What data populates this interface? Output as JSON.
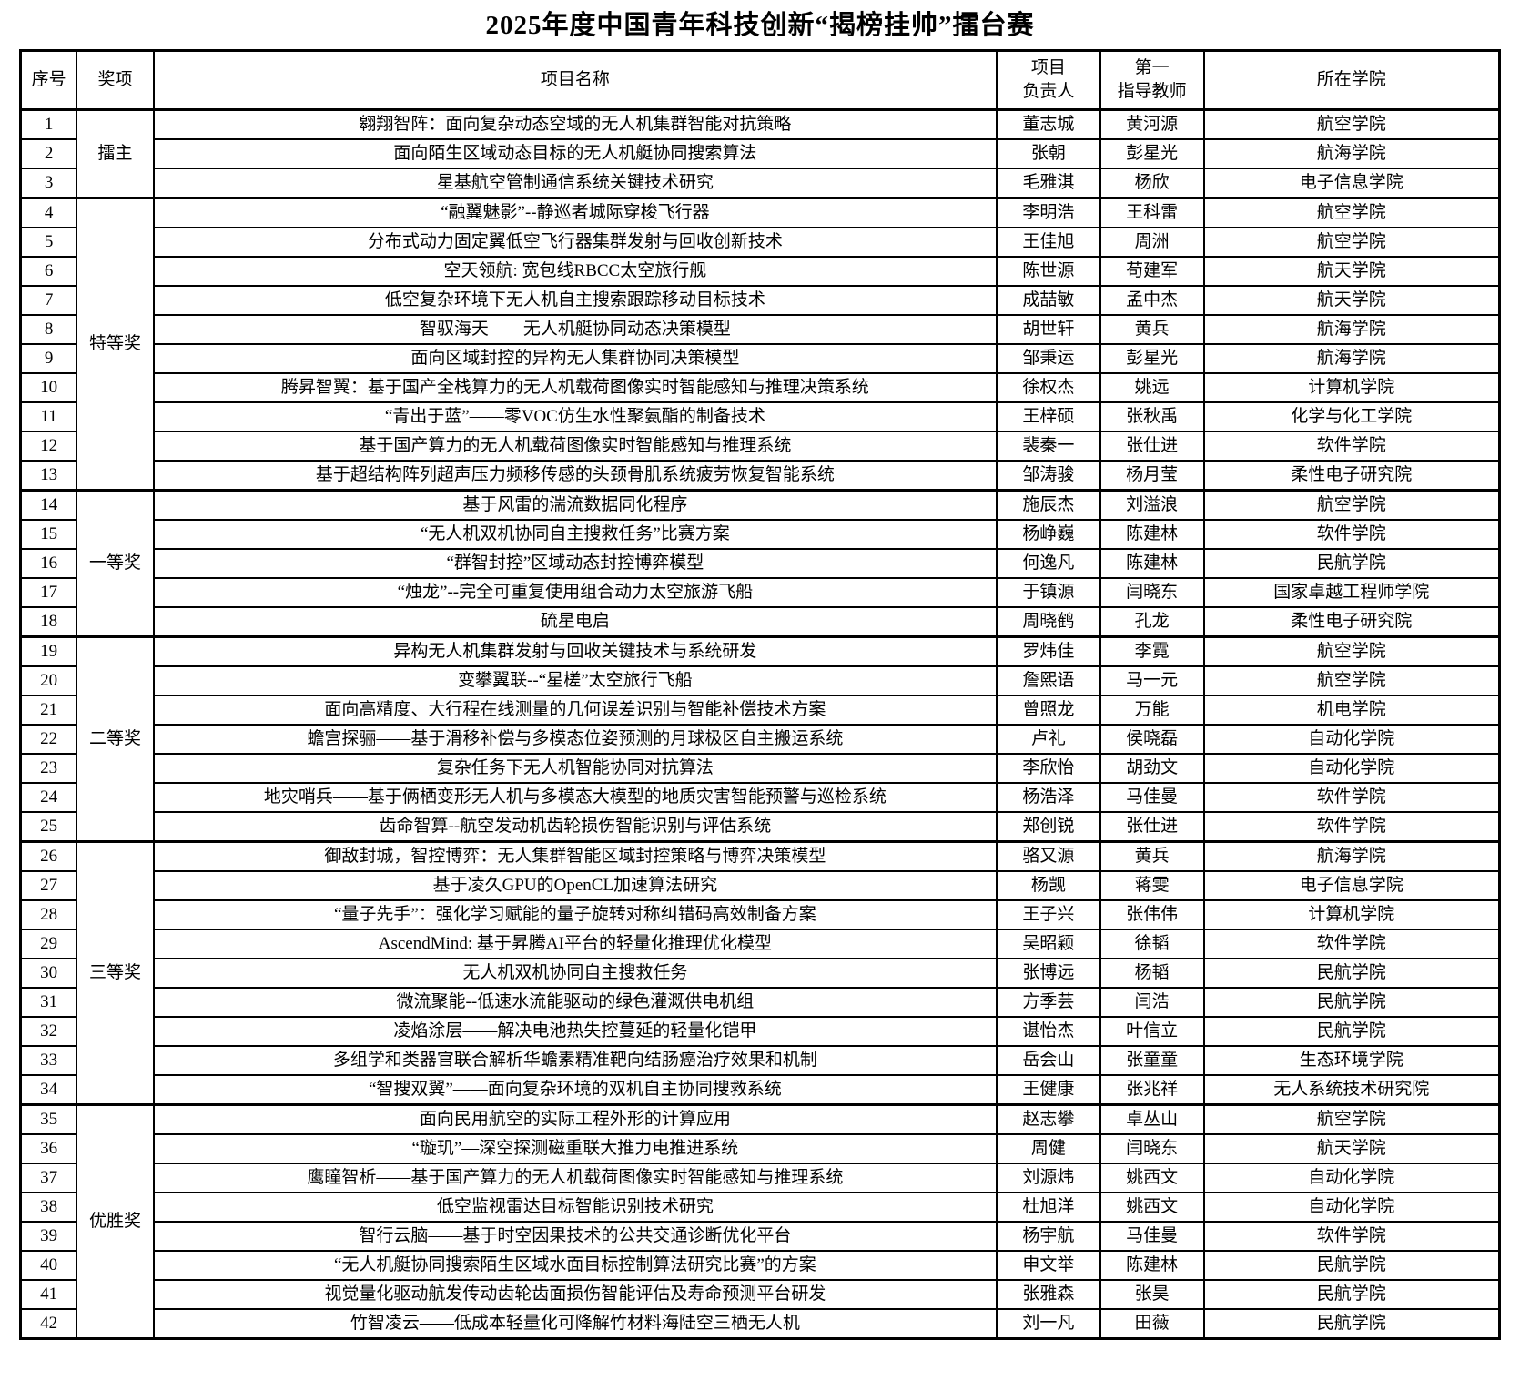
{
  "title": "2025年度中国青年科技创新“揭榜挂帅”擂台赛",
  "colors": {
    "text": "#000000",
    "border": "#000000",
    "background": "#ffffff"
  },
  "table": {
    "headers": {
      "index": "序号",
      "award": "奖项",
      "project": "项目名称",
      "leader": "项目\n负责人",
      "advisor": "第一\n指导教师",
      "college": "所在学院"
    },
    "groups": [
      {
        "award": "擂主",
        "rows": [
          {
            "no": "1",
            "project": "翱翔智阵：面向复杂动态空域的无人机集群智能对抗策略",
            "leader": "董志城",
            "advisor": "黄河源",
            "college": "航空学院"
          },
          {
            "no": "2",
            "project": "面向陌生区域动态目标的无人机艇协同搜索算法",
            "leader": "张朝",
            "advisor": "彭星光",
            "college": "航海学院"
          },
          {
            "no": "3",
            "project": "星基航空管制通信系统关键技术研究",
            "leader": "毛雅淇",
            "advisor": "杨欣",
            "college": "电子信息学院"
          }
        ]
      },
      {
        "award": "特等奖",
        "rows": [
          {
            "no": "4",
            "project": "“融翼魅影”--静巡者城际穿梭飞行器",
            "leader": "李明浩",
            "advisor": "王科雷",
            "college": "航空学院"
          },
          {
            "no": "5",
            "project": "分布式动力固定翼低空飞行器集群发射与回收创新技术",
            "leader": "王佳旭",
            "advisor": "周洲",
            "college": "航空学院"
          },
          {
            "no": "6",
            "project": "空天领航: 宽包线RBCC太空旅行舰",
            "leader": "陈世源",
            "advisor": "苟建军",
            "college": "航天学院"
          },
          {
            "no": "7",
            "project": "低空复杂环境下无人机自主搜索跟踪移动目标技术",
            "leader": "成喆敏",
            "advisor": "孟中杰",
            "college": "航天学院"
          },
          {
            "no": "8",
            "project": "智驭海天——无人机艇协同动态决策模型",
            "leader": "胡世轩",
            "advisor": "黄兵",
            "college": "航海学院"
          },
          {
            "no": "9",
            "project": "面向区域封控的异构无人集群协同决策模型",
            "leader": "邹秉运",
            "advisor": "彭星光",
            "college": "航海学院"
          },
          {
            "no": "10",
            "project": "腾昇智翼：基于国产全栈算力的无人机载荷图像实时智能感知与推理决策系统",
            "leader": "徐权杰",
            "advisor": "姚远",
            "college": "计算机学院"
          },
          {
            "no": "11",
            "project": "“青出于蓝”——零VOC仿生水性聚氨酯的制备技术",
            "leader": "王梓硕",
            "advisor": "张秋禹",
            "college": "化学与化工学院"
          },
          {
            "no": "12",
            "project": "基于国产算力的无人机载荷图像实时智能感知与推理系统",
            "leader": "裴秦一",
            "advisor": "张仕进",
            "college": "软件学院"
          },
          {
            "no": "13",
            "project": "基于超结构阵列超声压力频移传感的头颈骨肌系统疲劳恢复智能系统",
            "leader": "邹涛骏",
            "advisor": "杨月莹",
            "college": "柔性电子研究院"
          }
        ]
      },
      {
        "award": "一等奖",
        "rows": [
          {
            "no": "14",
            "project": "基于风雷的湍流数据同化程序",
            "leader": "施辰杰",
            "advisor": "刘溢浪",
            "college": "航空学院"
          },
          {
            "no": "15",
            "project": "“无人机双机协同自主搜救任务”比赛方案",
            "leader": "杨峥巍",
            "advisor": "陈建林",
            "college": "软件学院"
          },
          {
            "no": "16",
            "project": "“群智封控”区域动态封控博弈模型",
            "leader": "何逸凡",
            "advisor": "陈建林",
            "college": "民航学院"
          },
          {
            "no": "17",
            "project": "“烛龙”--完全可重复使用组合动力太空旅游飞船",
            "leader": "于镇源",
            "advisor": "闫晓东",
            "college": "国家卓越工程师学院"
          },
          {
            "no": "18",
            "project": "硫星电启",
            "leader": "周晓鹤",
            "advisor": "孔龙",
            "college": "柔性电子研究院"
          }
        ]
      },
      {
        "award": "二等奖",
        "rows": [
          {
            "no": "19",
            "project": "异构无人机集群发射与回收关键技术与系统研发",
            "leader": "罗炜佳",
            "advisor": "李霓",
            "college": "航空学院"
          },
          {
            "no": "20",
            "project": "变攀翼联--“星槎”太空旅行飞船",
            "leader": "詹熙语",
            "advisor": "马一元",
            "college": "航空学院"
          },
          {
            "no": "21",
            "project": "面向高精度、大行程在线测量的几何误差识别与智能补偿技术方案",
            "leader": "曾照龙",
            "advisor": "万能",
            "college": "机电学院"
          },
          {
            "no": "22",
            "project": "蟾宫探骊——基于滑移补偿与多模态位姿预测的月球极区自主搬运系统",
            "leader": "卢礼",
            "advisor": "侯晓磊",
            "college": "自动化学院"
          },
          {
            "no": "23",
            "project": "复杂任务下无人机智能协同对抗算法",
            "leader": "李欣怡",
            "advisor": "胡劲文",
            "college": "自动化学院"
          },
          {
            "no": "24",
            "project": "地灾哨兵——基于俩栖变形无人机与多模态大模型的地质灾害智能预警与巡检系统",
            "leader": "杨浩泽",
            "advisor": "马佳曼",
            "college": "软件学院"
          },
          {
            "no": "25",
            "project": "齿命智算--航空发动机齿轮损伤智能识别与评估系统",
            "leader": "郑创锐",
            "advisor": "张仕进",
            "college": "软件学院"
          }
        ]
      },
      {
        "award": "三等奖",
        "rows": [
          {
            "no": "26",
            "project": "御敌封城，智控博弈：无人集群智能区域封控策略与博弈决策模型",
            "leader": "骆又源",
            "advisor": "黄兵",
            "college": "航海学院"
          },
          {
            "no": "27",
            "project": "基于凌久GPU的OpenCL加速算法研究",
            "leader": "杨觊",
            "advisor": "蒋雯",
            "college": "电子信息学院"
          },
          {
            "no": "28",
            "project": "“量子先手”：强化学习赋能的量子旋转对称纠错码高效制备方案",
            "leader": "王子兴",
            "advisor": "张伟伟",
            "college": "计算机学院"
          },
          {
            "no": "29",
            "project": "AscendMind: 基于昇腾AI平台的轻量化推理优化模型",
            "leader": "吴昭颖",
            "advisor": "徐韬",
            "college": "软件学院"
          },
          {
            "no": "30",
            "project": "无人机双机协同自主搜救任务",
            "leader": "张博远",
            "advisor": "杨韬",
            "college": "民航学院"
          },
          {
            "no": "31",
            "project": "微流聚能--低速水流能驱动的绿色灌溉供电机组",
            "leader": "方季芸",
            "advisor": "闫浩",
            "college": "民航学院"
          },
          {
            "no": "32",
            "project": "凌焰涂层——解决电池热失控蔓延的轻量化铠甲",
            "leader": "谌怡杰",
            "advisor": "叶信立",
            "college": "民航学院"
          },
          {
            "no": "33",
            "project": "多组学和类器官联合解析华蟾素精准靶向结肠癌治疗效果和机制",
            "leader": "岳会山",
            "advisor": "张童童",
            "college": "生态环境学院"
          },
          {
            "no": "34",
            "project": "“智搜双翼”——面向复杂环境的双机自主协同搜救系统",
            "leader": "王健康",
            "advisor": "张兆祥",
            "college": "无人系统技术研究院"
          }
        ]
      },
      {
        "award": "优胜奖",
        "rows": [
          {
            "no": "35",
            "project": "面向民用航空的实际工程外形的计算应用",
            "leader": "赵志攀",
            "advisor": "卓丛山",
            "college": "航空学院"
          },
          {
            "no": "36",
            "project": "“璇玑”—深空探测磁重联大推力电推进系统",
            "leader": "周健",
            "advisor": "闫晓东",
            "college": "航天学院"
          },
          {
            "no": "37",
            "project": "鹰瞳智析——基于国产算力的无人机载荷图像实时智能感知与推理系统",
            "leader": "刘源炜",
            "advisor": "姚西文",
            "college": "自动化学院"
          },
          {
            "no": "38",
            "project": "低空监视雷达目标智能识别技术研究",
            "leader": "杜旭洋",
            "advisor": "姚西文",
            "college": "自动化学院"
          },
          {
            "no": "39",
            "project": "智行云脑——基于时空因果技术的公共交通诊断优化平台",
            "leader": "杨宇航",
            "advisor": "马佳曼",
            "college": "软件学院"
          },
          {
            "no": "40",
            "project": "“无人机艇协同搜索陌生区域水面目标控制算法研究比赛”的方案",
            "leader": "申文举",
            "advisor": "陈建林",
            "college": "民航学院"
          },
          {
            "no": "41",
            "project": "视觉量化驱动航发传动齿轮齿面损伤智能评估及寿命预测平台研发",
            "leader": "张雅森",
            "advisor": "张昊",
            "college": "民航学院"
          },
          {
            "no": "42",
            "project": "竹智凌云——低成本轻量化可降解竹材料海陆空三栖无人机",
            "leader": "刘一凡",
            "advisor": "田薇",
            "college": "民航学院"
          }
        ]
      }
    ]
  }
}
